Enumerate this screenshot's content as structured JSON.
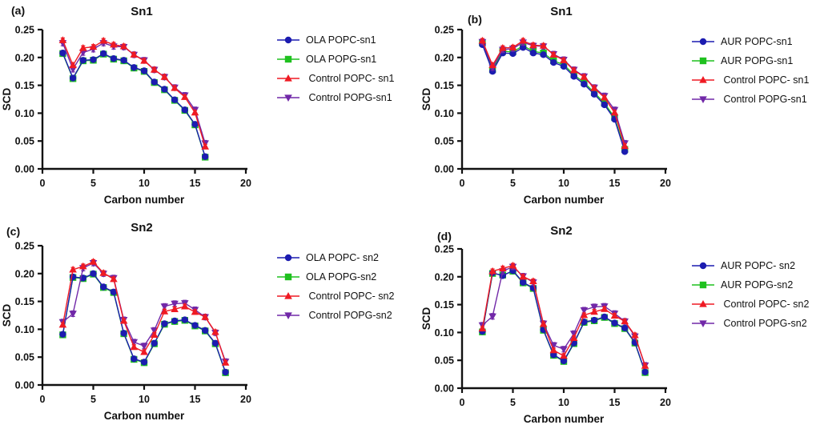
{
  "figure": {
    "background": "#ffffff",
    "axis_color": "#111111"
  },
  "panel_letters": {
    "a": "(a)",
    "b": "(b)",
    "c": "(c)",
    "d": "(d)"
  },
  "chart_data": [
    {
      "panel": "(a)",
      "type": "line",
      "title": "Sn1",
      "xlabel": "Carbon number",
      "ylabel": "SCD",
      "xlim": [
        0,
        20
      ],
      "ylim": [
        0,
        0.25
      ],
      "xticks": [
        0,
        5,
        10,
        15,
        20
      ],
      "ytick_labels": [
        "0.00",
        "0.05",
        "0.10",
        "0.15",
        "0.20",
        "0.25"
      ],
      "legend_position": "right",
      "grid": false,
      "x": [
        2,
        3,
        4,
        5,
        6,
        7,
        8,
        9,
        10,
        11,
        12,
        13,
        14,
        15,
        16
      ],
      "series": [
        {
          "name": "OLA POPC-sn1",
          "color": "#1c1cb0",
          "marker": "circle",
          "err": 0.002,
          "values": [
            0.208,
            0.163,
            0.195,
            0.196,
            0.207,
            0.198,
            0.195,
            0.182,
            0.176,
            0.156,
            0.143,
            0.124,
            0.106,
            0.08,
            0.022
          ]
        },
        {
          "name": "OLA POPG-sn1",
          "color": "#1fc11f",
          "marker": "square",
          "err": 0.002,
          "values": [
            0.207,
            0.162,
            0.194,
            0.195,
            0.206,
            0.197,
            0.194,
            0.181,
            0.175,
            0.155,
            0.142,
            0.123,
            0.105,
            0.079,
            0.021
          ]
        },
        {
          "name": " Control POPC- sn1",
          "color": "#ef1a23",
          "marker": "triangle-up",
          "err": 0.004,
          "values": [
            0.231,
            0.186,
            0.217,
            0.219,
            0.23,
            0.223,
            0.22,
            0.205,
            0.194,
            0.178,
            0.165,
            0.145,
            0.129,
            0.101,
            0.04
          ]
        },
        {
          "name": " Control POPG-sn1",
          "color": "#7128a8",
          "marker": "triangle-down",
          "err": 0.005,
          "values": [
            0.226,
            0.179,
            0.209,
            0.215,
            0.226,
            0.22,
            0.219,
            0.205,
            0.195,
            0.178,
            0.165,
            0.146,
            0.132,
            0.106,
            0.046
          ]
        }
      ]
    },
    {
      "panel": "(b)",
      "type": "line",
      "title": "Sn1",
      "xlabel": "Carbon number",
      "ylabel": "SCD",
      "xlim": [
        0,
        20
      ],
      "ylim": [
        0,
        0.25
      ],
      "xticks": [
        0,
        5,
        10,
        15,
        20
      ],
      "ytick_labels": [
        "0.00",
        "0.05",
        "0.10",
        "0.15",
        "0.20",
        "0.25"
      ],
      "legend_position": "right",
      "grid": false,
      "x": [
        2,
        3,
        4,
        5,
        6,
        7,
        8,
        9,
        10,
        11,
        12,
        13,
        14,
        15,
        16
      ],
      "series": [
        {
          "name": "AUR POPC-sn1",
          "color": "#1c1cb0",
          "marker": "circle",
          "err": 0.002,
          "values": [
            0.223,
            0.175,
            0.208,
            0.207,
            0.218,
            0.208,
            0.205,
            0.191,
            0.184,
            0.166,
            0.152,
            0.134,
            0.115,
            0.089,
            0.031
          ]
        },
        {
          "name": "AUR POPG-sn1",
          "color": "#1fc11f",
          "marker": "square",
          "err": 0.002,
          "values": [
            0.226,
            0.178,
            0.211,
            0.21,
            0.221,
            0.211,
            0.208,
            0.194,
            0.187,
            0.169,
            0.155,
            0.137,
            0.118,
            0.092,
            0.035
          ]
        },
        {
          "name": " Control POPC- sn1",
          "color": "#ef1a23",
          "marker": "triangle-up",
          "err": 0.004,
          "values": [
            0.23,
            0.186,
            0.217,
            0.218,
            0.23,
            0.222,
            0.221,
            0.205,
            0.195,
            0.177,
            0.165,
            0.145,
            0.128,
            0.101,
            0.041
          ]
        },
        {
          "name": " Control POPG-sn1",
          "color": "#7128a8",
          "marker": "triangle-down",
          "err": 0.005,
          "values": [
            0.228,
            0.182,
            0.214,
            0.216,
            0.227,
            0.221,
            0.22,
            0.206,
            0.196,
            0.178,
            0.166,
            0.146,
            0.131,
            0.106,
            0.046
          ]
        }
      ]
    },
    {
      "panel": "(c)",
      "type": "line",
      "title": "Sn2",
      "xlabel": "Carbon number",
      "ylabel": "SCD",
      "xlim": [
        0,
        20
      ],
      "ylim": [
        0,
        0.25
      ],
      "xticks": [
        0,
        5,
        10,
        15,
        20
      ],
      "ytick_labels": [
        "0.00",
        "0.05",
        "0.10",
        "0.15",
        "0.20",
        "0.25"
      ],
      "legend_position": "right",
      "grid": false,
      "x": [
        2,
        3,
        4,
        5,
        6,
        7,
        8,
        9,
        10,
        11,
        12,
        13,
        14,
        15,
        16,
        17,
        18
      ],
      "series": [
        {
          "name": "OLA POPC- sn2",
          "color": "#1c1cb0",
          "marker": "circle",
          "err": 0.002,
          "values": [
            0.091,
            0.194,
            0.192,
            0.2,
            0.176,
            0.167,
            0.093,
            0.047,
            0.041,
            0.075,
            0.11,
            0.115,
            0.117,
            0.107,
            0.098,
            0.075,
            0.023
          ]
        },
        {
          "name": "OLA POPG-sn2",
          "color": "#1fc11f",
          "marker": "square",
          "err": 0.002,
          "values": [
            0.09,
            0.193,
            0.191,
            0.199,
            0.175,
            0.166,
            0.092,
            0.046,
            0.04,
            0.074,
            0.109,
            0.114,
            0.116,
            0.106,
            0.097,
            0.074,
            0.022
          ]
        },
        {
          "name": " Control POPC- sn2",
          "color": "#ef1a23",
          "marker": "triangle-up",
          "err": 0.004,
          "values": [
            0.108,
            0.207,
            0.213,
            0.221,
            0.201,
            0.19,
            0.115,
            0.068,
            0.059,
            0.09,
            0.132,
            0.136,
            0.141,
            0.131,
            0.122,
            0.095,
            0.04
          ]
        },
        {
          "name": " Control POPG-sn2",
          "color": "#7128a8",
          "marker": "triangle-down",
          "err": 0.005,
          "values": [
            0.113,
            0.128,
            0.21,
            0.219,
            0.2,
            0.192,
            0.117,
            0.077,
            0.07,
            0.098,
            0.141,
            0.146,
            0.147,
            0.135,
            0.122,
            0.094,
            0.042
          ]
        }
      ]
    },
    {
      "panel": "(d)",
      "type": "line",
      "title": "Sn2",
      "xlabel": "Carbon number",
      "ylabel": "SCD",
      "xlim": [
        0,
        20
      ],
      "ylim": [
        0,
        0.25
      ],
      "xticks": [
        0,
        5,
        10,
        15,
        20
      ],
      "ytick_labels": [
        "0.00",
        "0.05",
        "0.10",
        "0.15",
        "0.20",
        "0.25"
      ],
      "legend_position": "right",
      "grid": false,
      "x": [
        2,
        3,
        4,
        5,
        6,
        7,
        8,
        9,
        10,
        11,
        12,
        13,
        14,
        15,
        16,
        17,
        18
      ],
      "series": [
        {
          "name": "AUR POPC- sn2",
          "color": "#1c1cb0",
          "marker": "circle",
          "err": 0.002,
          "values": [
            0.102,
            0.207,
            0.202,
            0.211,
            0.19,
            0.18,
            0.105,
            0.06,
            0.049,
            0.081,
            0.119,
            0.122,
            0.128,
            0.117,
            0.108,
            0.082,
            0.029
          ]
        },
        {
          "name": "AUR POPG-sn2",
          "color": "#1fc11f",
          "marker": "square",
          "err": 0.002,
          "values": [
            0.101,
            0.206,
            0.203,
            0.21,
            0.189,
            0.179,
            0.104,
            0.059,
            0.048,
            0.08,
            0.118,
            0.121,
            0.127,
            0.116,
            0.107,
            0.081,
            0.028
          ]
        },
        {
          "name": " Control POPC- sn2",
          "color": "#ef1a23",
          "marker": "triangle-up",
          "err": 0.004,
          "values": [
            0.107,
            0.21,
            0.215,
            0.22,
            0.2,
            0.192,
            0.115,
            0.068,
            0.058,
            0.09,
            0.131,
            0.137,
            0.142,
            0.13,
            0.12,
            0.095,
            0.04
          ]
        },
        {
          "name": " Control POPG-sn2",
          "color": "#7128a8",
          "marker": "triangle-down",
          "err": 0.005,
          "values": [
            0.113,
            0.129,
            0.21,
            0.218,
            0.201,
            0.19,
            0.116,
            0.077,
            0.07,
            0.098,
            0.14,
            0.146,
            0.147,
            0.134,
            0.12,
            0.093,
            0.041
          ]
        }
      ]
    }
  ]
}
